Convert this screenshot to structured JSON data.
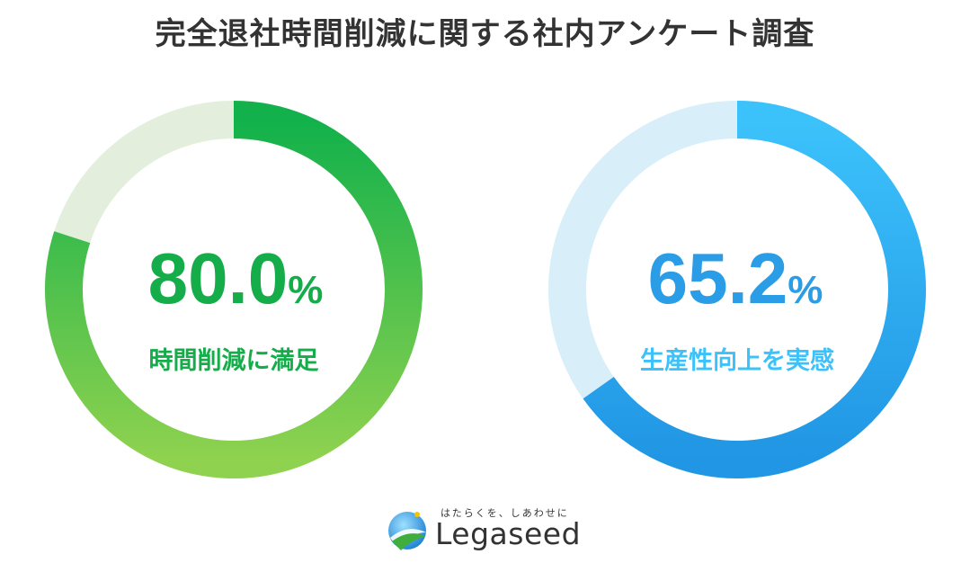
{
  "title": "完全退社時間削減に関する社内アンケート調査",
  "colors": {
    "green_start": "#12b14b",
    "green_end": "#8fd24f",
    "green_track": "#e3efdc",
    "green_text": "#14ad4a",
    "blue_start": "#3cc2fb",
    "blue_end": "#2196e4",
    "blue_track": "#d8effa",
    "blue_text": "#2a9de6"
  },
  "chart_data": [
    {
      "type": "pie",
      "value": 80.0,
      "value_label": "80.0",
      "unit": "%",
      "caption": "時間削減に満足"
    },
    {
      "type": "pie",
      "value": 65.2,
      "value_label": "65.2",
      "unit": "%",
      "caption": "生産性向上を実感"
    }
  ],
  "logo": {
    "tagline": "はたらくを、しあわせに",
    "brand": "Legaseed",
    "icon": "legaseed-logo-icon"
  }
}
